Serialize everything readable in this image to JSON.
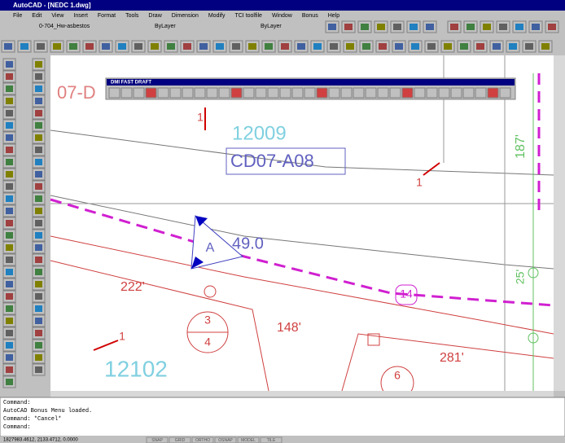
{
  "title_bar": {
    "title": "AutoCAD - [NEDC 1.dwg]"
  },
  "menu": [
    "File",
    "Edit",
    "View",
    "Insert",
    "Format",
    "Tools",
    "Draw",
    "Dimension",
    "Modify",
    "TCI toolfile",
    "Window",
    "Bonus",
    "Help"
  ],
  "properties_bar": {
    "layer": "0-704_Hw-asbestos",
    "color": "ByLayer",
    "linetype": "ByLayer"
  },
  "floating_toolbar": {
    "title": "DMI FAST DRAFT"
  },
  "drawing": {
    "labels": [
      "07-D",
      "12009",
      "CD07-A08",
      "1",
      "1",
      "49.0",
      "A",
      "222'",
      "148'",
      "281'",
      "3",
      "4",
      "14",
      "12102",
      "6",
      "187'",
      "25'",
      "1"
    ]
  },
  "command_line": {
    "lines": [
      "Command:",
      "AutoCAD Bonus Menu loaded.",
      "Command: *Cancel*",
      "Command:"
    ]
  },
  "status_bar": {
    "coordinates": "1827983.4612, 2133.4712, 0.0000",
    "modes": [
      "SNAP",
      "GRID",
      "ORTHO",
      "OSNAP",
      "MODEL",
      "TILE"
    ]
  }
}
